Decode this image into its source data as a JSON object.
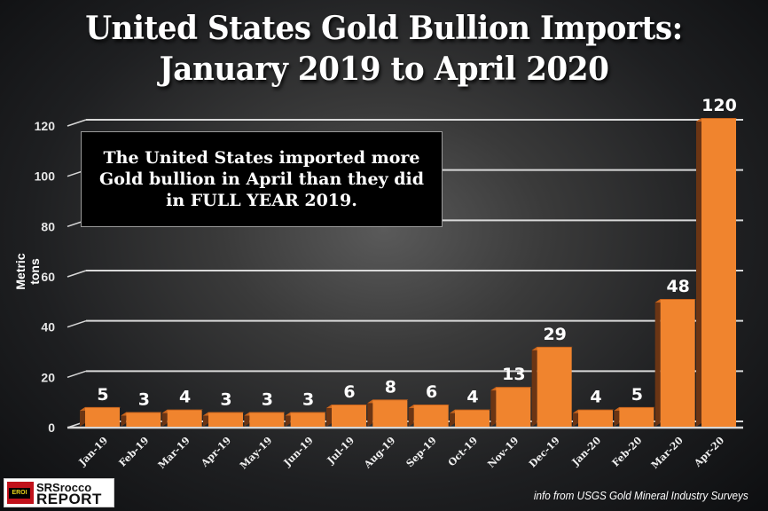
{
  "title_line1": "United States Gold Bullion Imports:",
  "title_line2": "January 2019 to April 2020",
  "callout": "The United States imported more Gold bullion in April than they did in FULL YEAR 2019.",
  "source": "info from USGS Gold Mineral Industry Surveys",
  "logo": {
    "badge": "EROI",
    "line1": "SRSrocco",
    "line2": "REPORT"
  },
  "colors": {
    "bar_front": "#f0842e",
    "bar_side": "#6b3514",
    "bar_top": "#c9651d",
    "grid": "#d8d8d8"
  },
  "chart_data": {
    "type": "bar",
    "title": "United States Gold Bullion Imports: January 2019 to April 2020",
    "xlabel": "",
    "ylabel": "Metric tons",
    "ylim": [
      0,
      120
    ],
    "yticks": [
      0,
      20,
      40,
      60,
      80,
      100,
      120
    ],
    "grid": true,
    "categories": [
      "Jan-19",
      "Feb-19",
      "Mar-19",
      "Apr-19",
      "May-19",
      "Jun-19",
      "Jul-19",
      "Aug-19",
      "Sep-19",
      "Oct-19",
      "Nov-19",
      "Dec-19",
      "Jan-20",
      "Feb-20",
      "Mar-20",
      "Apr-20"
    ],
    "values": [
      5,
      3,
      4,
      3,
      3,
      3,
      6,
      8,
      6,
      4,
      13,
      29,
      4,
      5,
      48,
      120
    ],
    "data_labels": [
      "5",
      "3",
      "4",
      "3",
      "3",
      "3",
      "6",
      "8",
      "6",
      "4",
      "13",
      "29",
      "4",
      "5",
      "48",
      "120"
    ]
  }
}
